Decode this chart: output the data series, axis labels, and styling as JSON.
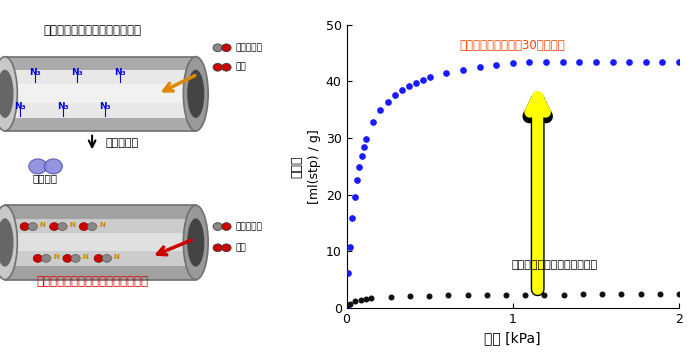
{
  "xlabel": "圧力 [kPa]",
  "ylabel": "吸着量\n[ml(stp) / g]",
  "xlim": [
    0,
    2
  ],
  "ylim": [
    0,
    50
  ],
  "xticks": [
    0,
    1,
    2
  ],
  "yticks": [
    0,
    10,
    20,
    30,
    40,
    50
  ],
  "annotation_after": "光照射後は吸着量が30倍も増加",
  "annotation_before": "光照射前は酸素を吸着しない",
  "annotation_after_color": "#ff4400",
  "annotation_before_color": "#000000",
  "blue_dot_color": "#1a1aff",
  "black_dot_color": "#111111",
  "fig_text_top": "ある温度以下では吸着されない",
  "fig_text_uv": "紫外光照射",
  "fig_text_n2": "窒素分子",
  "fig_text_bottom": "光を当てると吸着されるようになる",
  "fig_text_co": "一酸化炭素",
  "fig_text_o2": "酸素"
}
